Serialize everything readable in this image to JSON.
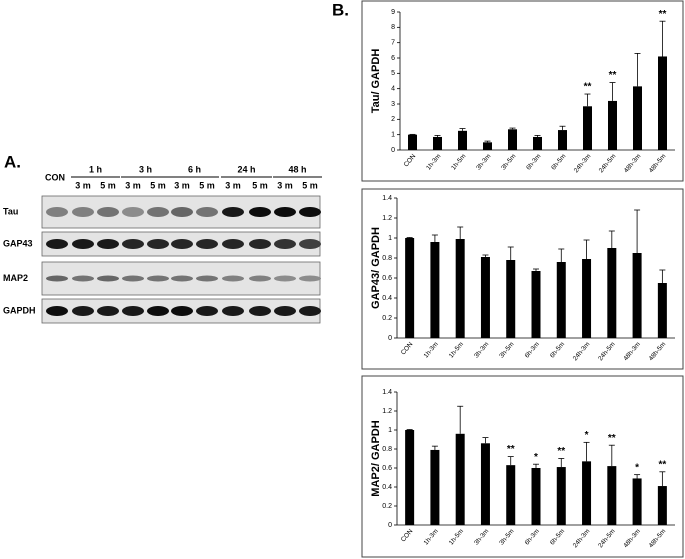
{
  "panel_b_label": "B.",
  "blot": {
    "label": "A.",
    "control": "CON",
    "groups": [
      {
        "time": "1 h",
        "sub": [
          "3 m",
          "5 m"
        ]
      },
      {
        "time": "3 h",
        "sub": [
          "3 m",
          "5 m"
        ]
      },
      {
        "time": "6 h",
        "sub": [
          "3 m",
          "5 m"
        ]
      },
      {
        "time": "24 h",
        "sub": [
          "3 m",
          "5 m"
        ]
      },
      {
        "time": "48 h",
        "sub": [
          "3 m",
          "5 m"
        ]
      }
    ],
    "rows": [
      "Tau",
      "GAP43",
      "MAP2",
      "GAPDH"
    ]
  },
  "chart_data": [
    {
      "type": "bar",
      "y_label": "Tau/ GAPDH",
      "color": "#000000",
      "categories": [
        "CON",
        "1h-3m",
        "1h-5m",
        "3h-3m",
        "3h-5m",
        "6h-3m",
        "6h-5m",
        "24h-3m",
        "24h-5m",
        "48h-3m",
        "48h-5m"
      ],
      "values": [
        1.0,
        0.85,
        1.25,
        0.5,
        1.35,
        0.85,
        1.3,
        2.85,
        3.2,
        4.15,
        6.1
      ],
      "errors": [
        0.02,
        0.1,
        0.15,
        0.08,
        0.08,
        0.1,
        0.25,
        0.8,
        1.2,
        2.15,
        2.3
      ],
      "annotations": [
        null,
        null,
        null,
        null,
        null,
        null,
        null,
        "**",
        "**",
        null,
        "**"
      ],
      "ylim": [
        0,
        9
      ],
      "yticks": [
        0,
        1,
        2,
        3,
        4,
        5,
        6,
        7,
        8,
        9
      ]
    },
    {
      "type": "bar",
      "y_label": "GAP43/ GAPDH",
      "color": "#000000",
      "categories": [
        "CON",
        "1h-3m",
        "1h-5m",
        "3h-3m",
        "3h-5m",
        "6h-3m",
        "6h-5m",
        "24h-3m",
        "24h-5m",
        "48h-3m",
        "48h-5m"
      ],
      "values": [
        1.0,
        0.96,
        0.99,
        0.81,
        0.78,
        0.67,
        0.76,
        0.79,
        0.9,
        0.85,
        0.55
      ],
      "errors": [
        0.005,
        0.07,
        0.12,
        0.02,
        0.13,
        0.02,
        0.13,
        0.19,
        0.17,
        0.43,
        0.13
      ],
      "annotations": [
        null,
        null,
        null,
        null,
        null,
        null,
        null,
        null,
        null,
        null,
        null
      ],
      "ylim": [
        0,
        1.4
      ],
      "yticks": [
        0,
        0.2,
        0.4,
        0.6,
        0.8,
        1,
        1.2,
        1.4
      ]
    },
    {
      "type": "bar",
      "y_label": "MAP2/ GAPDH",
      "color": "#000000",
      "categories": [
        "CON",
        "1h-3m",
        "1h-5m",
        "3h-3m",
        "3h-5m",
        "6h-3m",
        "6h-5m",
        "24h-3m",
        "24h-5m",
        "48h-3m",
        "48h-5m"
      ],
      "values": [
        1.0,
        0.79,
        0.96,
        0.86,
        0.63,
        0.6,
        0.61,
        0.67,
        0.62,
        0.49,
        0.41
      ],
      "errors": [
        0.005,
        0.04,
        0.29,
        0.06,
        0.09,
        0.04,
        0.09,
        0.2,
        0.22,
        0.04,
        0.15
      ],
      "annotations": [
        null,
        null,
        null,
        null,
        "**",
        "*",
        "**",
        "*",
        "**",
        "*",
        "**"
      ],
      "ylim": [
        0,
        1.4
      ],
      "yticks": [
        0,
        0.2,
        0.4,
        0.6,
        0.8,
        1,
        1.2,
        1.4
      ]
    }
  ]
}
